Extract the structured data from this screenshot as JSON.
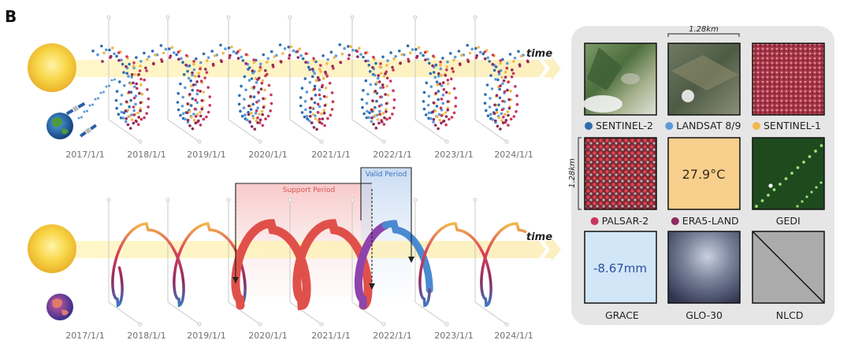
{
  "figure": {
    "panel_letter": "B",
    "time_label": "time",
    "dates": [
      "2017/1/1",
      "2018/1/1",
      "2019/1/1",
      "2020/1/1",
      "2021/1/1",
      "2022/1/1",
      "2023/1/1",
      "2024/1/1"
    ],
    "support_period_label": "Support Period",
    "valid_period_label": "Valid Period"
  },
  "panel": {
    "scale_top": "1.28km",
    "scale_side": "1.28km",
    "datasets": [
      {
        "label": "SENTINEL-2",
        "dot_color": "#2f6db0"
      },
      {
        "label": "LANDSAT 8/9",
        "dot_color": "#5b9bd5"
      },
      {
        "label": "SENTINEL-1",
        "dot_color": "#f2b84b"
      },
      {
        "label": "PALSAR-2",
        "dot_color": "#c9365a"
      },
      {
        "label": "ERA5-LAND",
        "dot_color": "#8e2b5e"
      },
      {
        "label": "GEDI",
        "dot_color": ""
      },
      {
        "label": "GRACE",
        "dot_color": ""
      },
      {
        "label": "GLO-30",
        "dot_color": ""
      },
      {
        "label": "NLCD",
        "dot_color": ""
      }
    ],
    "era5_value": "27.9°C",
    "grace_value": "-8.67mm"
  },
  "colors": {
    "dark_blue": "#2f6db0",
    "light_blue": "#5b9bd5",
    "yellow": "#f2b84b",
    "red": "#c9365a",
    "maroon": "#8e2b5e",
    "support_red": "#e0504a",
    "purple": "#8e44ad"
  }
}
